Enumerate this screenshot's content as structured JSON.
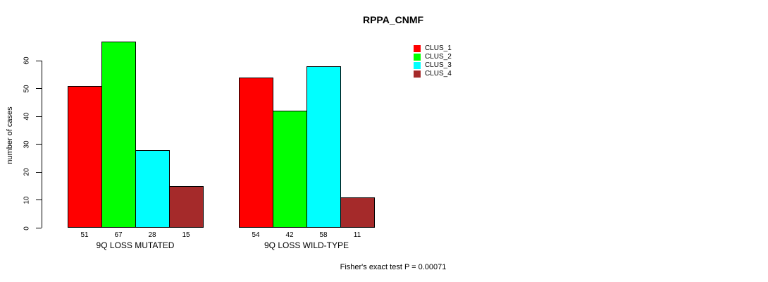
{
  "chart_data": {
    "type": "bar",
    "title": "RPPA_CNMF",
    "xlabel": "",
    "ylabel": "number of cases",
    "categories": [
      "9Q LOSS MUTATED",
      "9Q LOSS WILD-TYPE"
    ],
    "series": [
      {
        "name": "CLUS_1",
        "color": "#FF0000",
        "values": [
          51,
          54
        ]
      },
      {
        "name": "CLUS_2",
        "color": "#00FF00",
        "values": [
          67,
          42
        ]
      },
      {
        "name": "CLUS_3",
        "color": "#00FFFF",
        "values": [
          28,
          58
        ]
      },
      {
        "name": "CLUS_4",
        "color": "#A52A2A",
        "values": [
          15,
          11
        ]
      }
    ],
    "yticks": [
      0,
      10,
      20,
      30,
      40,
      50,
      60
    ],
    "ylim": [
      0,
      67
    ],
    "grid": false,
    "show_values_under_bars": true,
    "legend": {
      "position": "top-right",
      "entries": [
        "CLUS_1",
        "CLUS_2",
        "CLUS_3",
        "CLUS_4"
      ]
    },
    "annotation": "Fisher's exact test P = 0.00071",
    "colors": {
      "bar_border": "#000000",
      "axis": "#000000",
      "text": "#000000",
      "background": "#FFFFFF"
    }
  }
}
